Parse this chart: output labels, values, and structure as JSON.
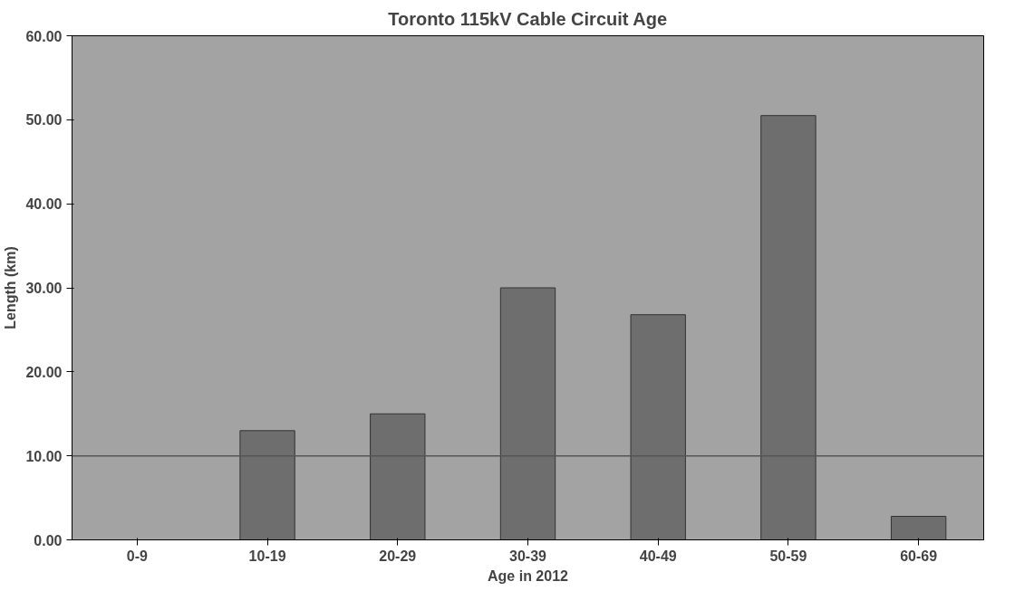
{
  "chart_data": {
    "type": "bar",
    "title": "Toronto 115kV Cable Circuit Age",
    "xlabel": "Age in 2012",
    "ylabel": "Length (km)",
    "categories": [
      "0-9",
      "10-19",
      "20-29",
      "30-39",
      "40-49",
      "50-59",
      "60-69"
    ],
    "values": [
      null,
      13,
      15,
      30,
      26.8,
      50.5,
      2.8
    ],
    "color": "#6e6e6e",
    "ylim": [
      0,
      60
    ],
    "yticks": [
      {
        "value": 0,
        "label": "0.00"
      },
      {
        "value": 10,
        "label": "10.00"
      },
      {
        "value": 20,
        "label": "20.00"
      },
      {
        "value": 30,
        "label": "30.00"
      },
      {
        "value": 40,
        "label": "40.00"
      },
      {
        "value": 50,
        "label": "50.00"
      },
      {
        "value": 60,
        "label": "60.00"
      }
    ],
    "grid": false,
    "ref_lines": [
      {
        "axis": "y",
        "value": 10,
        "color": "#555555"
      }
    ]
  }
}
